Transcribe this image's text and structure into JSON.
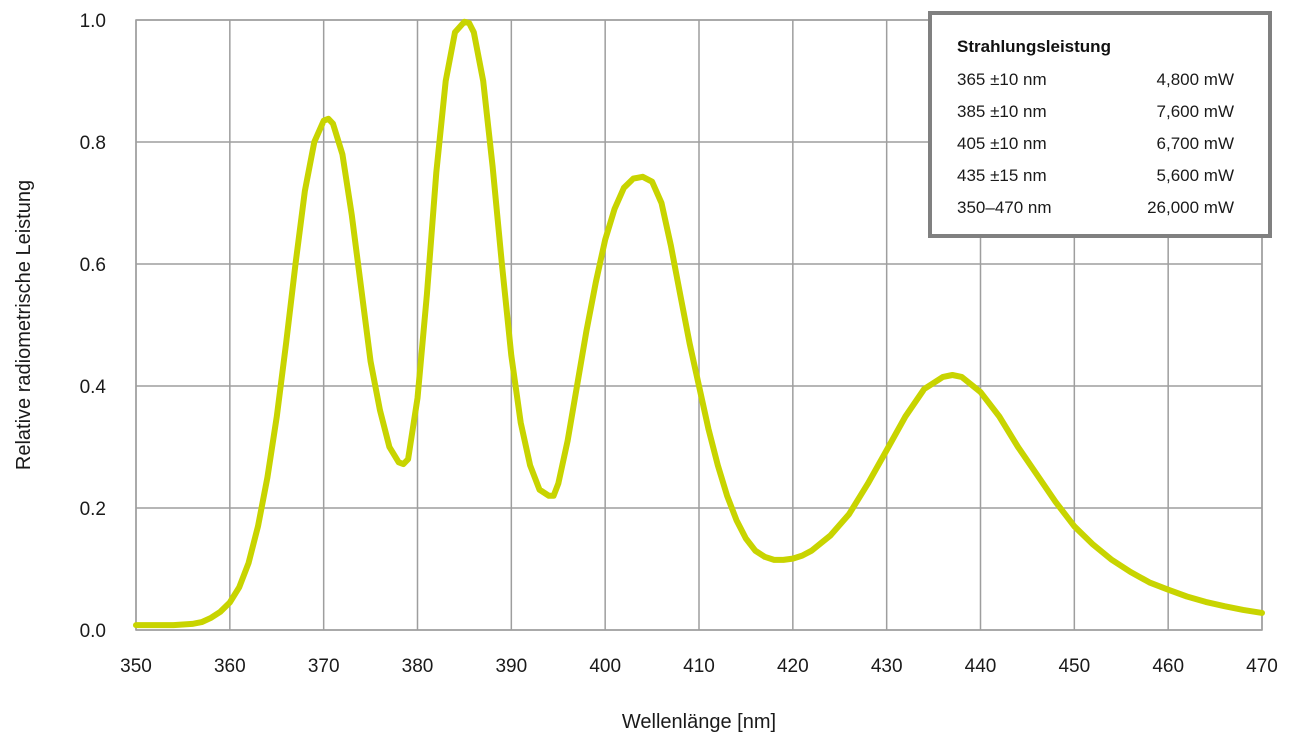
{
  "chart_data": {
    "type": "line",
    "title": "",
    "xlabel": "Wellenlänge [nm]",
    "ylabel": "Relative radiometrische Leistung",
    "xlim": [
      350,
      470
    ],
    "ylim": [
      0,
      1.0
    ],
    "x_ticks": [
      350,
      360,
      370,
      380,
      390,
      400,
      410,
      420,
      430,
      440,
      450,
      460,
      470
    ],
    "y_ticks": [
      "0.0",
      "0.2",
      "0.4",
      "0.6",
      "0.8",
      "1.0"
    ],
    "grid": true,
    "line_color": "#c8d400",
    "grid_color": "#9e9e9e",
    "series": [
      {
        "x": [
          350,
          352,
          354,
          355,
          356,
          357,
          358,
          359,
          360,
          361,
          362,
          363,
          364,
          365,
          366,
          367,
          368,
          369,
          370,
          370.5,
          371,
          372,
          373,
          374,
          375,
          376,
          377,
          378,
          378.5,
          379,
          380,
          381,
          382,
          383,
          384,
          385,
          385.5,
          386,
          387,
          388,
          389,
          390,
          391,
          392,
          393,
          394,
          394.5,
          395,
          396,
          397,
          398,
          399,
          400,
          401,
          402,
          403,
          404,
          405,
          406,
          407,
          408,
          409,
          410,
          411,
          412,
          413,
          414,
          415,
          416,
          417,
          418,
          419,
          420,
          421,
          422,
          424,
          426,
          428,
          430,
          432,
          434,
          436,
          437,
          438,
          440,
          442,
          444,
          446,
          448,
          450,
          452,
          454,
          456,
          458,
          460,
          462,
          464,
          466,
          468,
          470
        ],
        "y": [
          0.008,
          0.008,
          0.008,
          0.009,
          0.01,
          0.013,
          0.02,
          0.03,
          0.045,
          0.07,
          0.11,
          0.17,
          0.25,
          0.35,
          0.47,
          0.6,
          0.72,
          0.8,
          0.835,
          0.838,
          0.83,
          0.78,
          0.68,
          0.56,
          0.44,
          0.36,
          0.3,
          0.275,
          0.272,
          0.28,
          0.38,
          0.55,
          0.75,
          0.9,
          0.98,
          0.997,
          0.995,
          0.98,
          0.9,
          0.76,
          0.6,
          0.45,
          0.34,
          0.27,
          0.23,
          0.22,
          0.22,
          0.24,
          0.31,
          0.4,
          0.49,
          0.57,
          0.64,
          0.69,
          0.725,
          0.74,
          0.743,
          0.735,
          0.7,
          0.63,
          0.55,
          0.47,
          0.4,
          0.33,
          0.27,
          0.22,
          0.18,
          0.15,
          0.13,
          0.12,
          0.115,
          0.115,
          0.117,
          0.122,
          0.13,
          0.155,
          0.19,
          0.24,
          0.295,
          0.35,
          0.395,
          0.415,
          0.418,
          0.415,
          0.39,
          0.35,
          0.3,
          0.255,
          0.21,
          0.17,
          0.14,
          0.115,
          0.095,
          0.078,
          0.066,
          0.055,
          0.046,
          0.039,
          0.033,
          0.028
        ]
      }
    ],
    "legend": {
      "placement": "top-right",
      "title": "Strahlungsleistung",
      "rows": [
        {
          "label": "365 ±10 nm",
          "value": "4,800 mW"
        },
        {
          "label": "385 ±10 nm",
          "value": "7,600 mW"
        },
        {
          "label": "405 ±10 nm",
          "value": "6,700 mW"
        },
        {
          "label": "435 ±15 nm",
          "value": "5,600 mW"
        },
        {
          "label": "350–470 nm",
          "value": "26,000 mW"
        }
      ]
    }
  }
}
